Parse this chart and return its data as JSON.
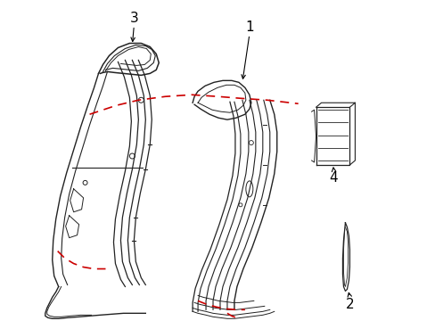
{
  "background_color": "#ffffff",
  "line_color": "#222222",
  "dashed_color": "#cc0000",
  "label_color": "#000000",
  "figsize": [
    4.89,
    3.6
  ],
  "dpi": 100
}
